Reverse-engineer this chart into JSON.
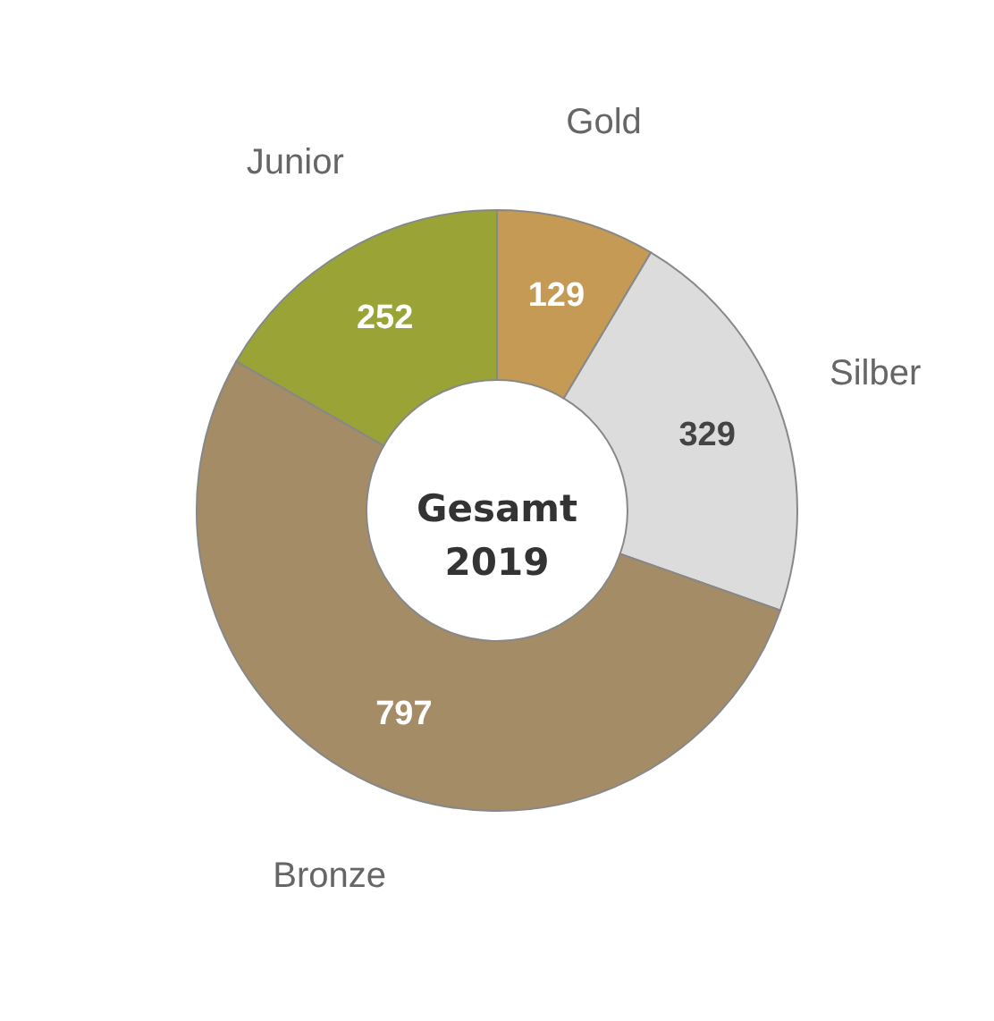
{
  "chart_data": {
    "type": "donut",
    "title": "Gesamt 2019",
    "categories": [
      "Gold",
      "Silber",
      "Bronze",
      "Junior"
    ],
    "values": [
      129,
      329,
      797,
      252
    ],
    "colors": [
      "#c49a54",
      "#dcdcdc",
      "#a48c66",
      "#9aa436"
    ],
    "data_labels": true,
    "legend": false
  }
}
